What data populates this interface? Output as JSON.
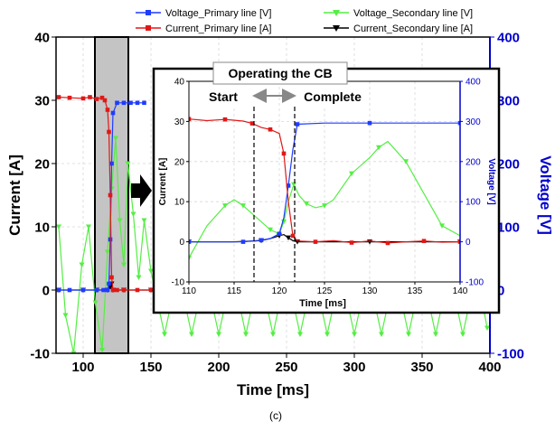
{
  "caption": "(c)",
  "colors": {
    "voltage_primary": "#1f3cff",
    "current_primary": "#e01818",
    "voltage_secondary": "#55ee44",
    "current_secondary": "#000000",
    "right_axis": "#0000cc",
    "shade": "#c0c0c0"
  },
  "chart_data": [
    {
      "type": "line",
      "xlabel": "Time [ms]",
      "ylabel": "Current [A]",
      "y2label": "Voltage [V]",
      "xlim": [
        80,
        400
      ],
      "ylim": [
        -10,
        40
      ],
      "y2lim": [
        -100,
        400
      ],
      "xticks": [
        "100",
        "150",
        "200",
        "250",
        "300",
        "350",
        "400"
      ],
      "yticks": [
        "-10",
        "0",
        "10",
        "20",
        "30",
        "40"
      ],
      "y2ticks": [
        "-100",
        "0",
        "100",
        "200",
        "300",
        "400"
      ],
      "grid": true,
      "legend_position": "top",
      "highlight_region": [
        107,
        133
      ],
      "series": [
        {
          "name": "Voltage_Primary line [V]",
          "axis": "right",
          "marker": "square",
          "x": [
            82,
            90,
            100,
            110,
            115,
            118,
            119,
            120,
            121,
            122,
            125,
            130,
            135,
            140,
            145
          ],
          "values": [
            0,
            0,
            0,
            0,
            0,
            0,
            10,
            80,
            200,
            280,
            296,
            296,
            296,
            296,
            296
          ]
        },
        {
          "name": "Current_Primary line [A]",
          "axis": "left",
          "marker": "square",
          "x": [
            82,
            90,
            100,
            105,
            110,
            114,
            116,
            118,
            119,
            120,
            121,
            122,
            125,
            130,
            140,
            150,
            160
          ],
          "values": [
            30.5,
            30.4,
            30.3,
            30.5,
            30.2,
            30.4,
            30,
            28.5,
            25,
            15,
            2,
            0,
            0,
            0,
            0,
            0,
            0
          ]
        },
        {
          "name": "Voltage_Secondary line [V]",
          "axis": "right",
          "marker": "triangle-down",
          "x": [
            82,
            87,
            93,
            99,
            104,
            109,
            114,
            118,
            121,
            124,
            127,
            130,
            133,
            137,
            141,
            145,
            150,
            160,
            170,
            180,
            190,
            200,
            210,
            220,
            230,
            240,
            250,
            260,
            270,
            280,
            290,
            300,
            310,
            320,
            330,
            340,
            350,
            360,
            370,
            380,
            390,
            398
          ],
          "values": [
            100,
            -40,
            -100,
            40,
            100,
            -20,
            -95,
            60,
            160,
            240,
            110,
            40,
            200,
            120,
            20,
            110,
            30,
            -70,
            30,
            -70,
            30,
            -70,
            30,
            -70,
            30,
            -70,
            30,
            -70,
            30,
            -70,
            30,
            -70,
            30,
            -70,
            30,
            -70,
            30,
            -70,
            30,
            -70,
            30,
            -60
          ]
        },
        {
          "name": "Current_Secondary line [A]",
          "axis": "left",
          "marker": "triangle-down",
          "x": [
            82,
            100,
            110,
            118,
            120,
            121,
            122,
            130,
            150,
            200,
            250,
            300,
            350,
            380,
            398
          ],
          "values": [
            0,
            0,
            0,
            0,
            0.5,
            1,
            0,
            0,
            0,
            0,
            0,
            0,
            0,
            0,
            0
          ]
        }
      ]
    },
    {
      "type": "line",
      "title": "Operating the CB",
      "annotations": [
        "Start",
        "Complete"
      ],
      "xlabel": "Time [ms]",
      "ylabel": "Current [A]",
      "y2label": "Voltage [V]",
      "xlim": [
        110,
        140
      ],
      "ylim": [
        -10,
        40
      ],
      "y2lim": [
        -100,
        400
      ],
      "xticks": [
        "110",
        "115",
        "120",
        "125",
        "130",
        "135",
        "140"
      ],
      "yticks": [
        "-10",
        "0",
        "10",
        "20",
        "30",
        "40"
      ],
      "y2ticks": [
        "-100",
        "0",
        "100",
        "200",
        "300",
        "400"
      ],
      "grid": true,
      "vlines": [
        117.2,
        121.7
      ],
      "series": [
        {
          "name": "Voltage_Primary line [V]",
          "axis": "right",
          "marker": "square",
          "x": [
            110,
            113,
            116,
            117,
            118,
            119,
            120,
            120.5,
            121,
            121.5,
            122,
            125,
            130,
            135,
            140
          ],
          "values": [
            0,
            0,
            0,
            2,
            4,
            8,
            20,
            60,
            140,
            230,
            293,
            296,
            296,
            296,
            296
          ]
        },
        {
          "name": "Current_Primary line [A]",
          "axis": "left",
          "marker": "square",
          "x": [
            110,
            112,
            114,
            116,
            117,
            118,
            119,
            120,
            120.5,
            121,
            121.5,
            122,
            124,
            126,
            128,
            130,
            132,
            134,
            136,
            138,
            140
          ],
          "values": [
            30.6,
            30.2,
            30.5,
            30.1,
            29.5,
            28.5,
            28,
            27,
            22,
            10,
            1.5,
            0.2,
            0,
            0.3,
            -0.2,
            0.2,
            -0.3,
            0,
            0.2,
            -0.1,
            0
          ]
        },
        {
          "name": "Voltage_Secondary line [V]",
          "axis": "right",
          "marker": "triangle-down",
          "x": [
            110,
            112,
            114,
            115,
            116,
            118,
            119,
            120,
            120.5,
            121,
            121.6,
            122.2,
            123,
            124,
            125,
            126,
            128,
            130,
            131,
            132,
            134,
            136,
            138,
            140
          ],
          "values": [
            -40,
            40,
            90,
            105,
            90,
            50,
            30,
            20,
            50,
            100,
            143,
            115,
            95,
            85,
            90,
            105,
            170,
            210,
            235,
            250,
            200,
            120,
            40,
            15
          ]
        },
        {
          "name": "Current_Secondary line [A]",
          "axis": "left",
          "marker": "triangle-down",
          "x": [
            110,
            115,
            118,
            119,
            120,
            120.5,
            121,
            121.5,
            122,
            125,
            130,
            135,
            140
          ],
          "values": [
            0,
            0,
            0.3,
            0.8,
            1.5,
            1.8,
            1,
            0.3,
            0,
            0,
            0,
            0,
            0
          ]
        }
      ]
    }
  ]
}
